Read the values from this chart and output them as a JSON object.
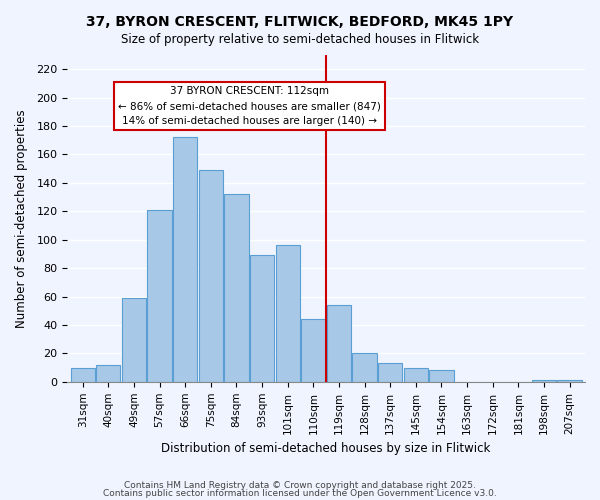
{
  "title": "37, BYRON CRESCENT, FLITWICK, BEDFORD, MK45 1PY",
  "subtitle": "Size of property relative to semi-detached houses in Flitwick",
  "xlabel": "Distribution of semi-detached houses by size in Flitwick",
  "ylabel": "Number of semi-detached properties",
  "bar_labels": [
    "31sqm",
    "40sqm",
    "49sqm",
    "57sqm",
    "66sqm",
    "75sqm",
    "84sqm",
    "93sqm",
    "101sqm",
    "110sqm",
    "119sqm",
    "128sqm",
    "137sqm",
    "145sqm",
    "154sqm",
    "163sqm",
    "172sqm",
    "181sqm",
    "198sqm",
    "207sqm"
  ],
  "bar_heights": [
    10,
    12,
    59,
    121,
    172,
    149,
    132,
    89,
    96,
    44,
    54,
    20,
    13,
    10,
    8,
    0,
    0,
    0,
    1,
    1
  ],
  "bar_color": "#a8c8e8",
  "bar_edge_color": "#5a9fd4",
  "vline_x": 9.5,
  "vline_color": "#cc0000",
  "annotation_title": "37 BYRON CRESCENT: 112sqm",
  "annotation_line1": "← 86% of semi-detached houses are smaller (847)",
  "annotation_line2": "14% of semi-detached houses are larger (140) →",
  "annotation_box_color": "#ffffff",
  "annotation_box_edge": "#cc0000",
  "ylim": [
    0,
    230
  ],
  "yticks": [
    0,
    20,
    40,
    60,
    80,
    100,
    120,
    140,
    160,
    180,
    200,
    220
  ],
  "footer1": "Contains HM Land Registry data © Crown copyright and database right 2025.",
  "footer2": "Contains public sector information licensed under the Open Government Licence v3.0.",
  "bg_color": "#f0f4ff",
  "grid_color": "#ffffff"
}
